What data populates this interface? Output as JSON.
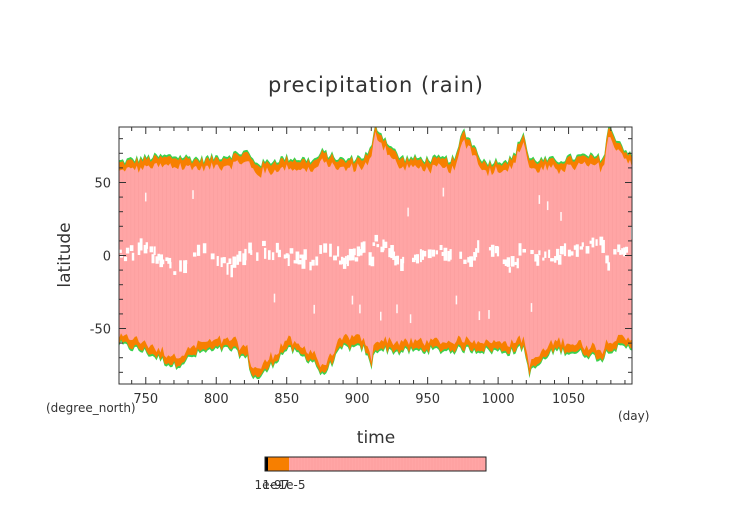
{
  "chart_data": {
    "type": "heatmap",
    "title": "precipitation (rain)",
    "xlabel": "time",
    "ylabel": "latitude",
    "x_units": "(day)",
    "y_units": "(degree_north)",
    "xlim": [
      731,
      1095
    ],
    "ylim": [
      -88,
      88
    ],
    "x_ticks": [
      750,
      800,
      850,
      900,
      950,
      1000,
      1050
    ],
    "y_ticks": [
      -50,
      0,
      50
    ],
    "grid": false,
    "legend": "bottom",
    "colorbar": {
      "tick_labels": [
        "1e-9",
        "1e-7",
        "1e-5"
      ],
      "colors": [
        "#000000",
        "#f77f00",
        "#ffa5a5"
      ]
    },
    "colors": {
      "background": "#ffffff",
      "rain_fill": "#ffa5a5",
      "edge_orange": "#f77f00",
      "edge_green": "#3ad24e",
      "dry_gap": "#ffffff",
      "frame": "#333333"
    },
    "series": [
      {
        "x": [
          731,
          750,
          770,
          790,
          810,
          822,
          826,
          832,
          850,
          870,
          875,
          890,
          905,
          910,
          913,
          930,
          950,
          970,
          975,
          990,
          1010,
          1018,
          1022,
          1040,
          1060,
          1075,
          1078,
          1095
        ],
        "north_edge": [
          63,
          66,
          67,
          65,
          68,
          70,
          64,
          62,
          66,
          64,
          70,
          64,
          67,
          72,
          88,
          66,
          65,
          65,
          86,
          63,
          65,
          84,
          65,
          64,
          67,
          66,
          87,
          66
        ],
        "south_edge": [
          -60,
          -65,
          -75,
          -65,
          -63,
          -70,
          -83,
          -82,
          -63,
          -72,
          -82,
          -62,
          -63,
          -76,
          -63,
          -65,
          -64,
          -64,
          -63,
          -64,
          -65,
          -62,
          -80,
          -64,
          -66,
          -70,
          -63,
          -62
        ],
        "dry_band": [
          0,
          5,
          -10,
          2,
          -8,
          4,
          -2,
          6,
          0,
          -5,
          8,
          -3,
          4,
          -1,
          10,
          -6,
          3,
          2,
          -4,
          6,
          -8,
          5,
          0,
          -2,
          7,
          10,
          -5,
          12
        ]
      }
    ]
  }
}
